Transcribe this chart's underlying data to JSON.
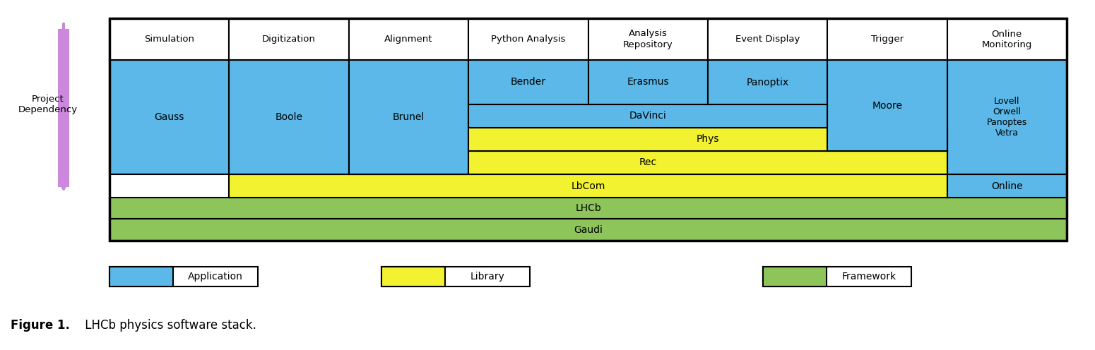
{
  "fig_width": 15.5,
  "fig_height": 4.96,
  "dpi": 100,
  "colors": {
    "blue": "#5BB8E8",
    "yellow": "#F2F230",
    "green": "#8DC55A",
    "white": "#FFFFFF",
    "black": "#000000",
    "purple": "#CC88DD"
  },
  "col_labels": [
    "Simulation",
    "Digitization",
    "Alignment",
    "Python Analysis",
    "Analysis\nRepository",
    "Event Display",
    "Trigger",
    "Online\nMonitoring"
  ],
  "caption_bold": "Figure 1.",
  "caption_normal": " LHCb physics software stack."
}
